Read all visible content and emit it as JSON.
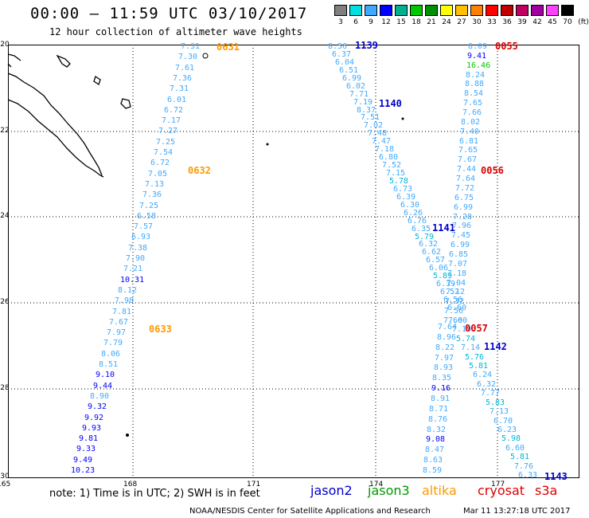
{
  "header": {
    "title": "00:00 – 11:59 UTC 03/10/2017",
    "subtitle": "12 hour collection of altimeter wave heights"
  },
  "color_scale": {
    "unit_label": "(ft)",
    "bins": [
      {
        "label": "3",
        "color": "#808080"
      },
      {
        "label": "6",
        "color": "#00e0e0"
      },
      {
        "label": "9",
        "color": "#3fa9ff"
      },
      {
        "label": "12",
        "color": "#0000ff"
      },
      {
        "label": "15",
        "color": "#00b090"
      },
      {
        "label": "18",
        "color": "#00c800"
      },
      {
        "label": "21",
        "color": "#009000"
      },
      {
        "label": "24",
        "color": "#ffff00"
      },
      {
        "label": "27",
        "color": "#ffc000"
      },
      {
        "label": "30",
        "color": "#ff8000"
      },
      {
        "label": "33",
        "color": "#ff0000"
      },
      {
        "label": "36",
        "color": "#c00000"
      },
      {
        "label": "39",
        "color": "#c00060"
      },
      {
        "label": "42",
        "color": "#a000a0"
      },
      {
        "label": "45",
        "color": "#ff40ff"
      },
      {
        "label": "70",
        "color": "#000000"
      }
    ]
  },
  "map": {
    "lon_ticks": [
      "165",
      "168",
      "171",
      "174",
      "177"
    ],
    "lat_ticks": [
      "-20",
      "-22",
      "-24",
      "-26",
      "-28",
      "-30"
    ]
  },
  "passes": [
    {
      "label": "0631",
      "color": "#ff9900"
    },
    {
      "label": "0632",
      "color": "#ff9900"
    },
    {
      "label": "0633",
      "color": "#ff9900"
    },
    {
      "label": "1139",
      "color": "#0000cc"
    },
    {
      "label": "1140",
      "color": "#0000cc"
    },
    {
      "label": "1141",
      "color": "#0000cc"
    },
    {
      "label": "1142",
      "color": "#0000cc"
    },
    {
      "label": "1143",
      "color": "#0000cc"
    },
    {
      "label": "0055",
      "color": "#dd0000"
    },
    {
      "label": "0056",
      "color": "#dd0000"
    },
    {
      "label": "0057",
      "color": "#dd0000"
    }
  ],
  "tracks": [
    {
      "values": [
        "7.31",
        "7.30",
        "7.61",
        "7.36",
        "7.31",
        "6.01",
        "6.72",
        "7.17",
        "7.27",
        "7.25",
        "7.54",
        "6.72",
        "7.05",
        "7.13",
        "7.36",
        "7.25",
        "6.58",
        "7.57",
        "6.93",
        "7.38",
        "7.90",
        "7.21",
        "10.31",
        "8.12",
        "7.98",
        "7.81",
        "7.67",
        "7.97",
        "7.79",
        "8.06",
        "8.51",
        "9.10",
        "9.44",
        "8.90",
        "9.32",
        "9.92",
        "9.93",
        "9.81",
        "9.33",
        "9.49",
        "10.23"
      ]
    },
    {
      "values": [
        "8.56",
        "6.37",
        "6.04",
        "6.51",
        "6.99",
        "6.02",
        "7.71",
        "7.19",
        "8.37",
        "7.51",
        "7.02",
        "7.48",
        "7.47",
        "7.18",
        "6.80",
        "7.52",
        "7.15",
        "5.78",
        "6.73",
        "6.39",
        "6.30",
        "6.26",
        "6.76",
        "6.35",
        "5.79",
        "6.32",
        "6.62",
        "6.57",
        "6.06",
        "5.89",
        "6.39",
        "6.52",
        "6.56",
        "6.60"
      ]
    },
    {
      "values": [
        "8.09",
        "9.41",
        "16.46",
        "8.24",
        "8.88",
        "8.54",
        "7.65",
        "7.66",
        "8.02",
        "7.40",
        "6.81",
        "7.65",
        "7.67",
        "7.44",
        "7.64",
        "7.72",
        "6.75",
        "6.99",
        "7.28",
        "7.96",
        "7.45",
        "6.99",
        "6.85",
        "7.07",
        "7.18",
        "7.04",
        "7.12",
        "7.32",
        "7.56",
        "7.60"
      ]
    },
    {
      "values": [
        "7.64",
        "8.96",
        "8.22",
        "7.97",
        "8.93",
        "8.35",
        "9.16",
        "8.91",
        "8.71",
        "8.76",
        "8.32",
        "9.08",
        "8.47",
        "8.63",
        "8.59"
      ]
    },
    {
      "values": [
        "7.60",
        "7.19",
        "5.74",
        "7.14",
        "5.76",
        "5.81",
        "6.24",
        "6.32",
        "7.77",
        "5.83",
        "7.13",
        "6.70",
        "6.23",
        "5.98",
        "6.60",
        "5.81",
        "7.76",
        "6.33"
      ]
    }
  ],
  "footer": {
    "note": "note: 1) Time is in UTC; 2) SWH is in feet",
    "legend": [
      {
        "label": "jason2",
        "color": "#0000cc"
      },
      {
        "label": "jason3",
        "color": "#009900"
      },
      {
        "label": "altika",
        "color": "#ff9900"
      },
      {
        "label": "cryosat",
        "color": "#dd0000"
      },
      {
        "label": "s3a",
        "color": "#dd0000"
      }
    ],
    "credit": "NOAA/NESDIS Center for Satellite Applications and Research",
    "timestamp": "Mar 11 13:27:18 UTC 2017"
  }
}
